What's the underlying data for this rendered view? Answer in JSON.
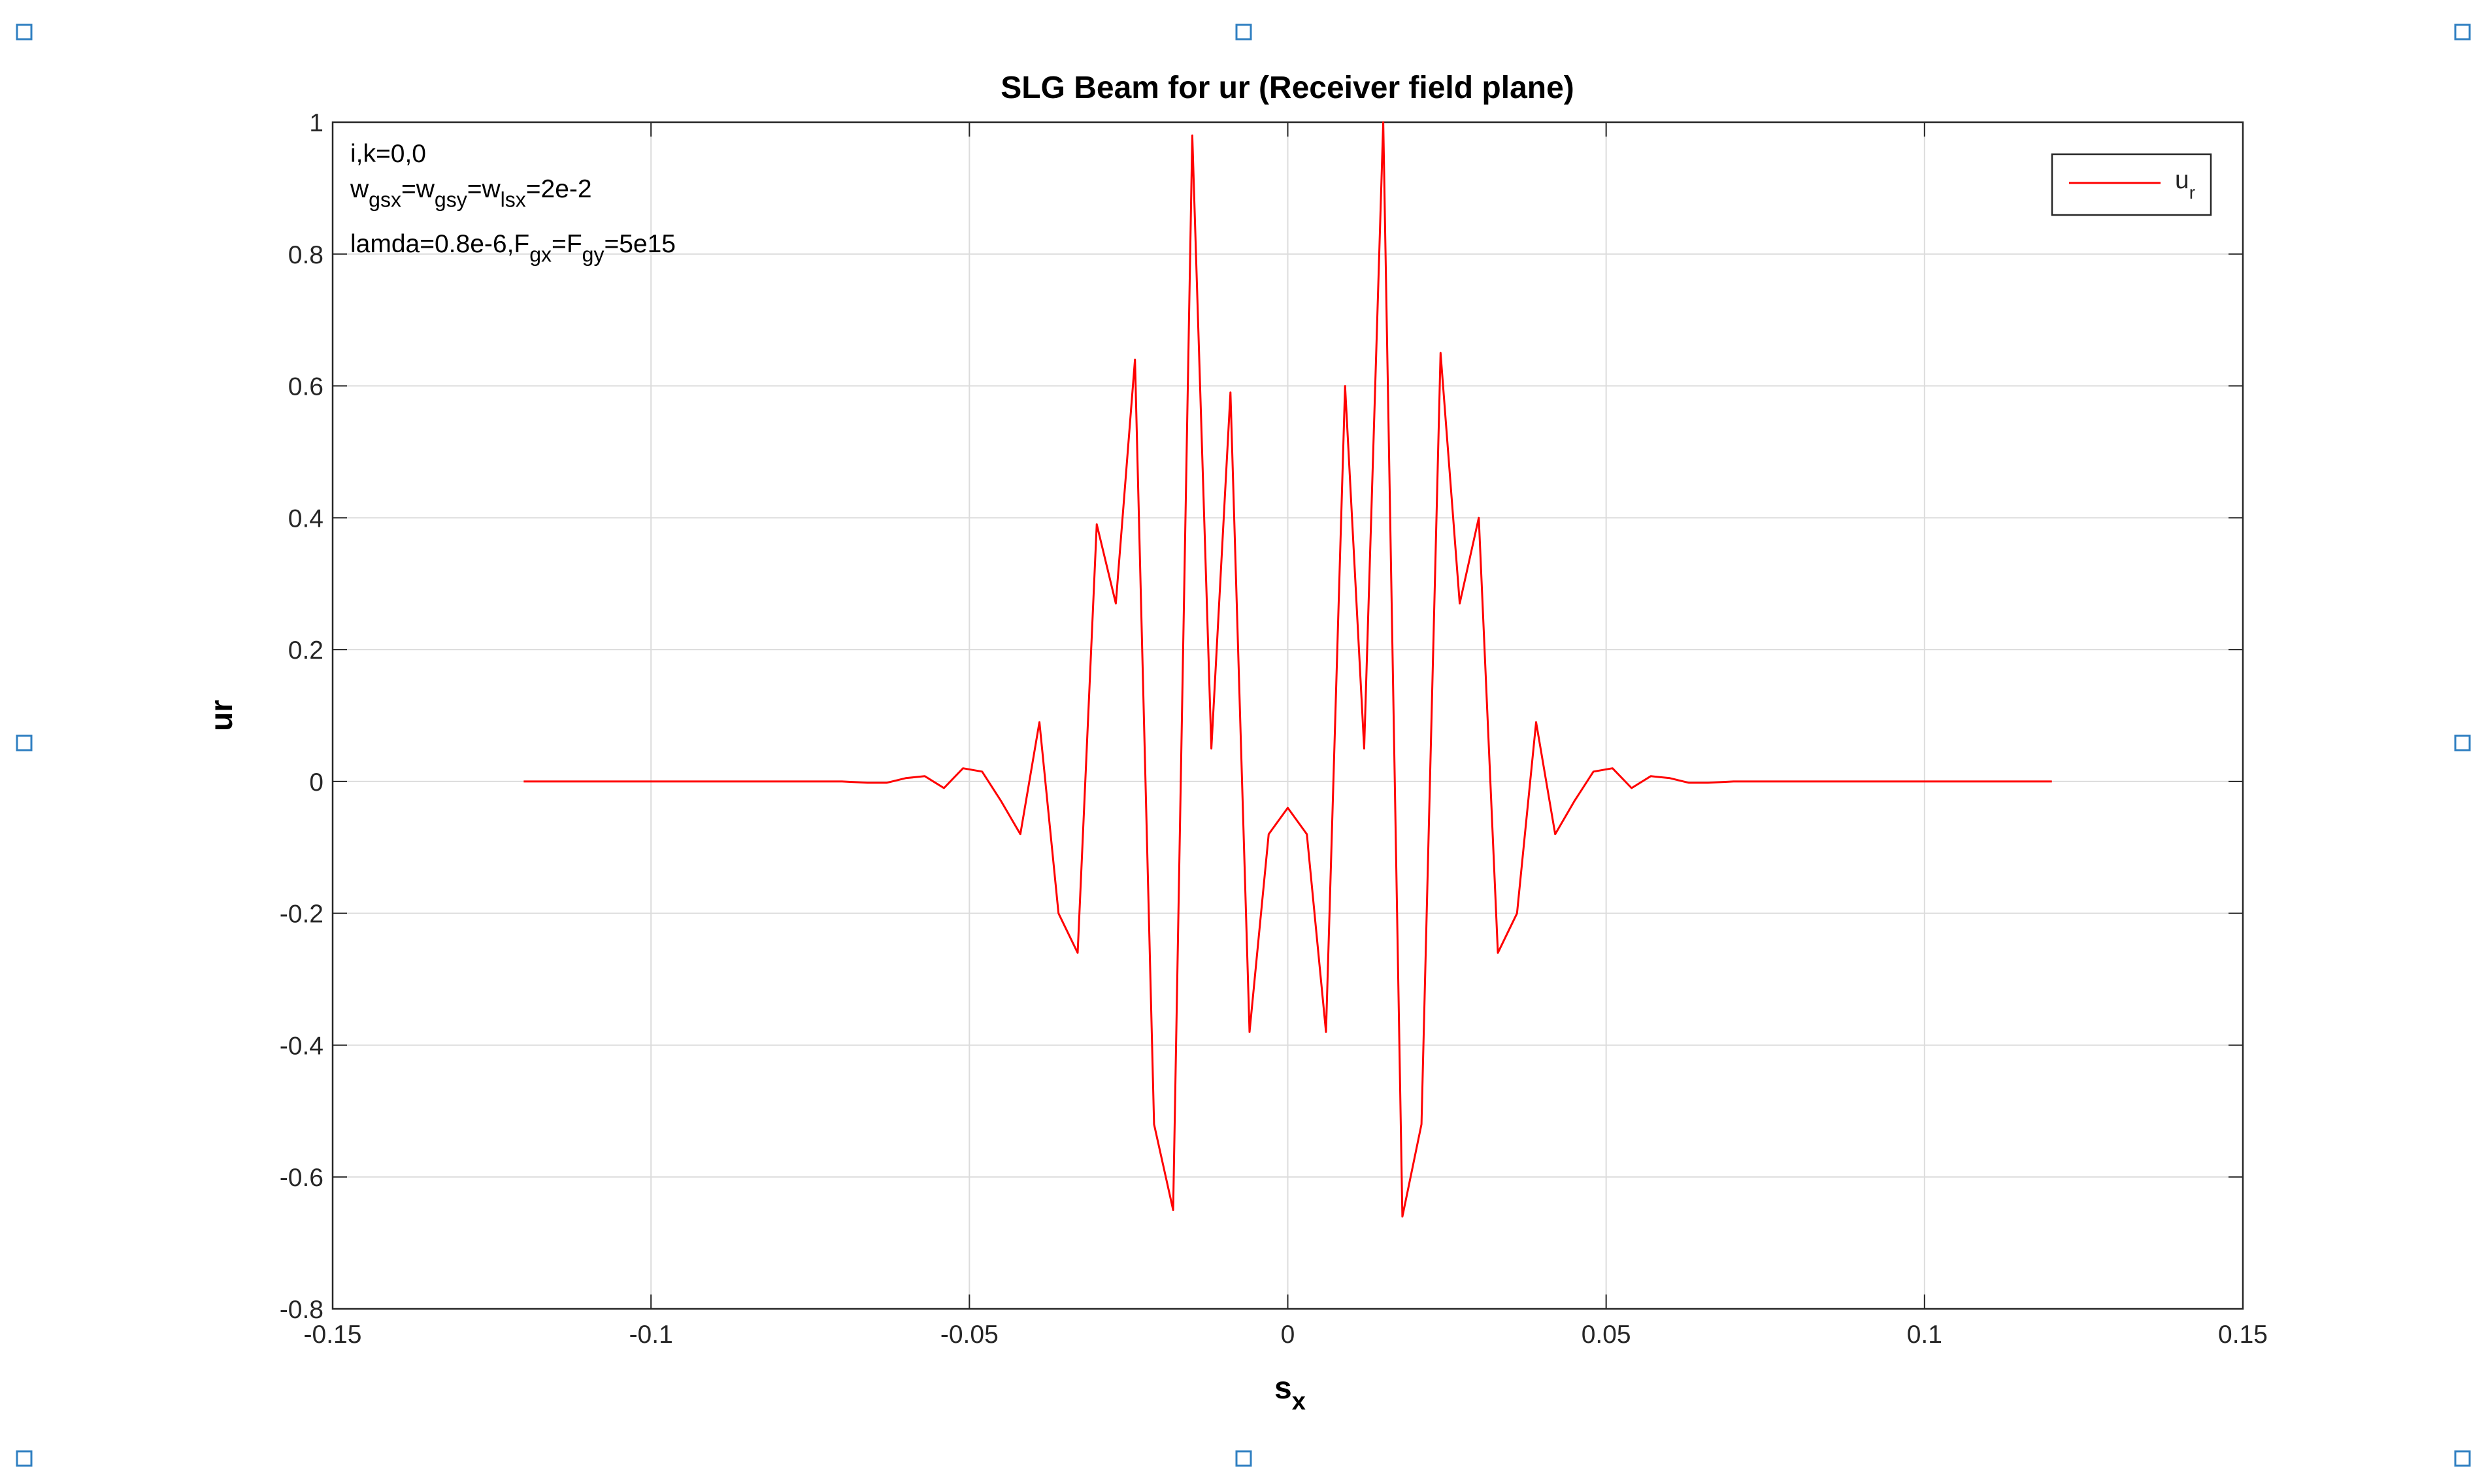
{
  "chart_data": {
    "type": "line",
    "title": "SLG Beam for ur (Receiver field plane)",
    "ylabel": "ur",
    "xlabel": [
      {
        "t": "s"
      },
      {
        "s": "x"
      }
    ],
    "annotation": [
      [
        {
          "t": "i,k=0,0"
        }
      ],
      [
        {
          "t": "w"
        },
        {
          "s": "gsx"
        },
        {
          "t": "=w"
        },
        {
          "s": "gsy"
        },
        {
          "t": "=w"
        },
        {
          "s": "lsx"
        },
        {
          "t": "=2e-2"
        }
      ],
      [
        {
          "t": "lamda=0.8e-6,F"
        },
        {
          "s": "gx"
        },
        {
          "t": "=F"
        },
        {
          "s": "gy"
        },
        {
          "t": "=5e15"
        }
      ]
    ],
    "x": [
      -0.12,
      -0.09,
      -0.07,
      -0.066,
      -0.063,
      -0.06,
      -0.057,
      -0.054,
      -0.051,
      -0.048,
      -0.045,
      -0.042,
      -0.039,
      -0.036,
      -0.033,
      -0.03,
      -0.027,
      -0.024,
      -0.021,
      -0.018,
      -0.015,
      -0.012,
      -0.009,
      -0.006,
      -0.003,
      0,
      0.003,
      0.006,
      0.009,
      0.012,
      0.015,
      0.018,
      0.021,
      0.024,
      0.027,
      0.03,
      0.033,
      0.036,
      0.039,
      0.042,
      0.045,
      0.048,
      0.051,
      0.054,
      0.057,
      0.06,
      0.063,
      0.066,
      0.07,
      0.09,
      0.12
    ],
    "series": [
      {
        "name": "u",
        "name_sub": "r",
        "color": "#ff0000",
        "values": [
          0,
          0,
          0,
          -0.002,
          -0.002,
          0.005,
          0.008,
          -0.01,
          0.02,
          0.015,
          -0.03,
          -0.08,
          0.09,
          -0.2,
          -0.26,
          0.39,
          0.27,
          0.64,
          -0.52,
          -0.65,
          0.98,
          0.05,
          0.59,
          -0.38,
          -0.08,
          -0.04,
          -0.08,
          -0.38,
          0.6,
          0.05,
          1.0,
          -0.66,
          -0.52,
          0.65,
          0.27,
          0.4,
          -0.26,
          -0.2,
          0.09,
          -0.08,
          -0.03,
          0.015,
          0.02,
          -0.01,
          0.008,
          0.005,
          -0.002,
          -0.002,
          0,
          0,
          0
        ]
      }
    ],
    "xlim": [
      -0.15,
      0.15
    ],
    "xticks": [
      -0.15,
      -0.1,
      -0.05,
      0,
      0.05,
      0.1,
      0.15
    ],
    "ylim": [
      -0.8,
      1
    ],
    "yticks": [
      -0.8,
      -0.6,
      -0.4,
      -0.2,
      0,
      0.2,
      0.4,
      0.6,
      0.8,
      1
    ],
    "grid": true,
    "legend": "upper right"
  }
}
